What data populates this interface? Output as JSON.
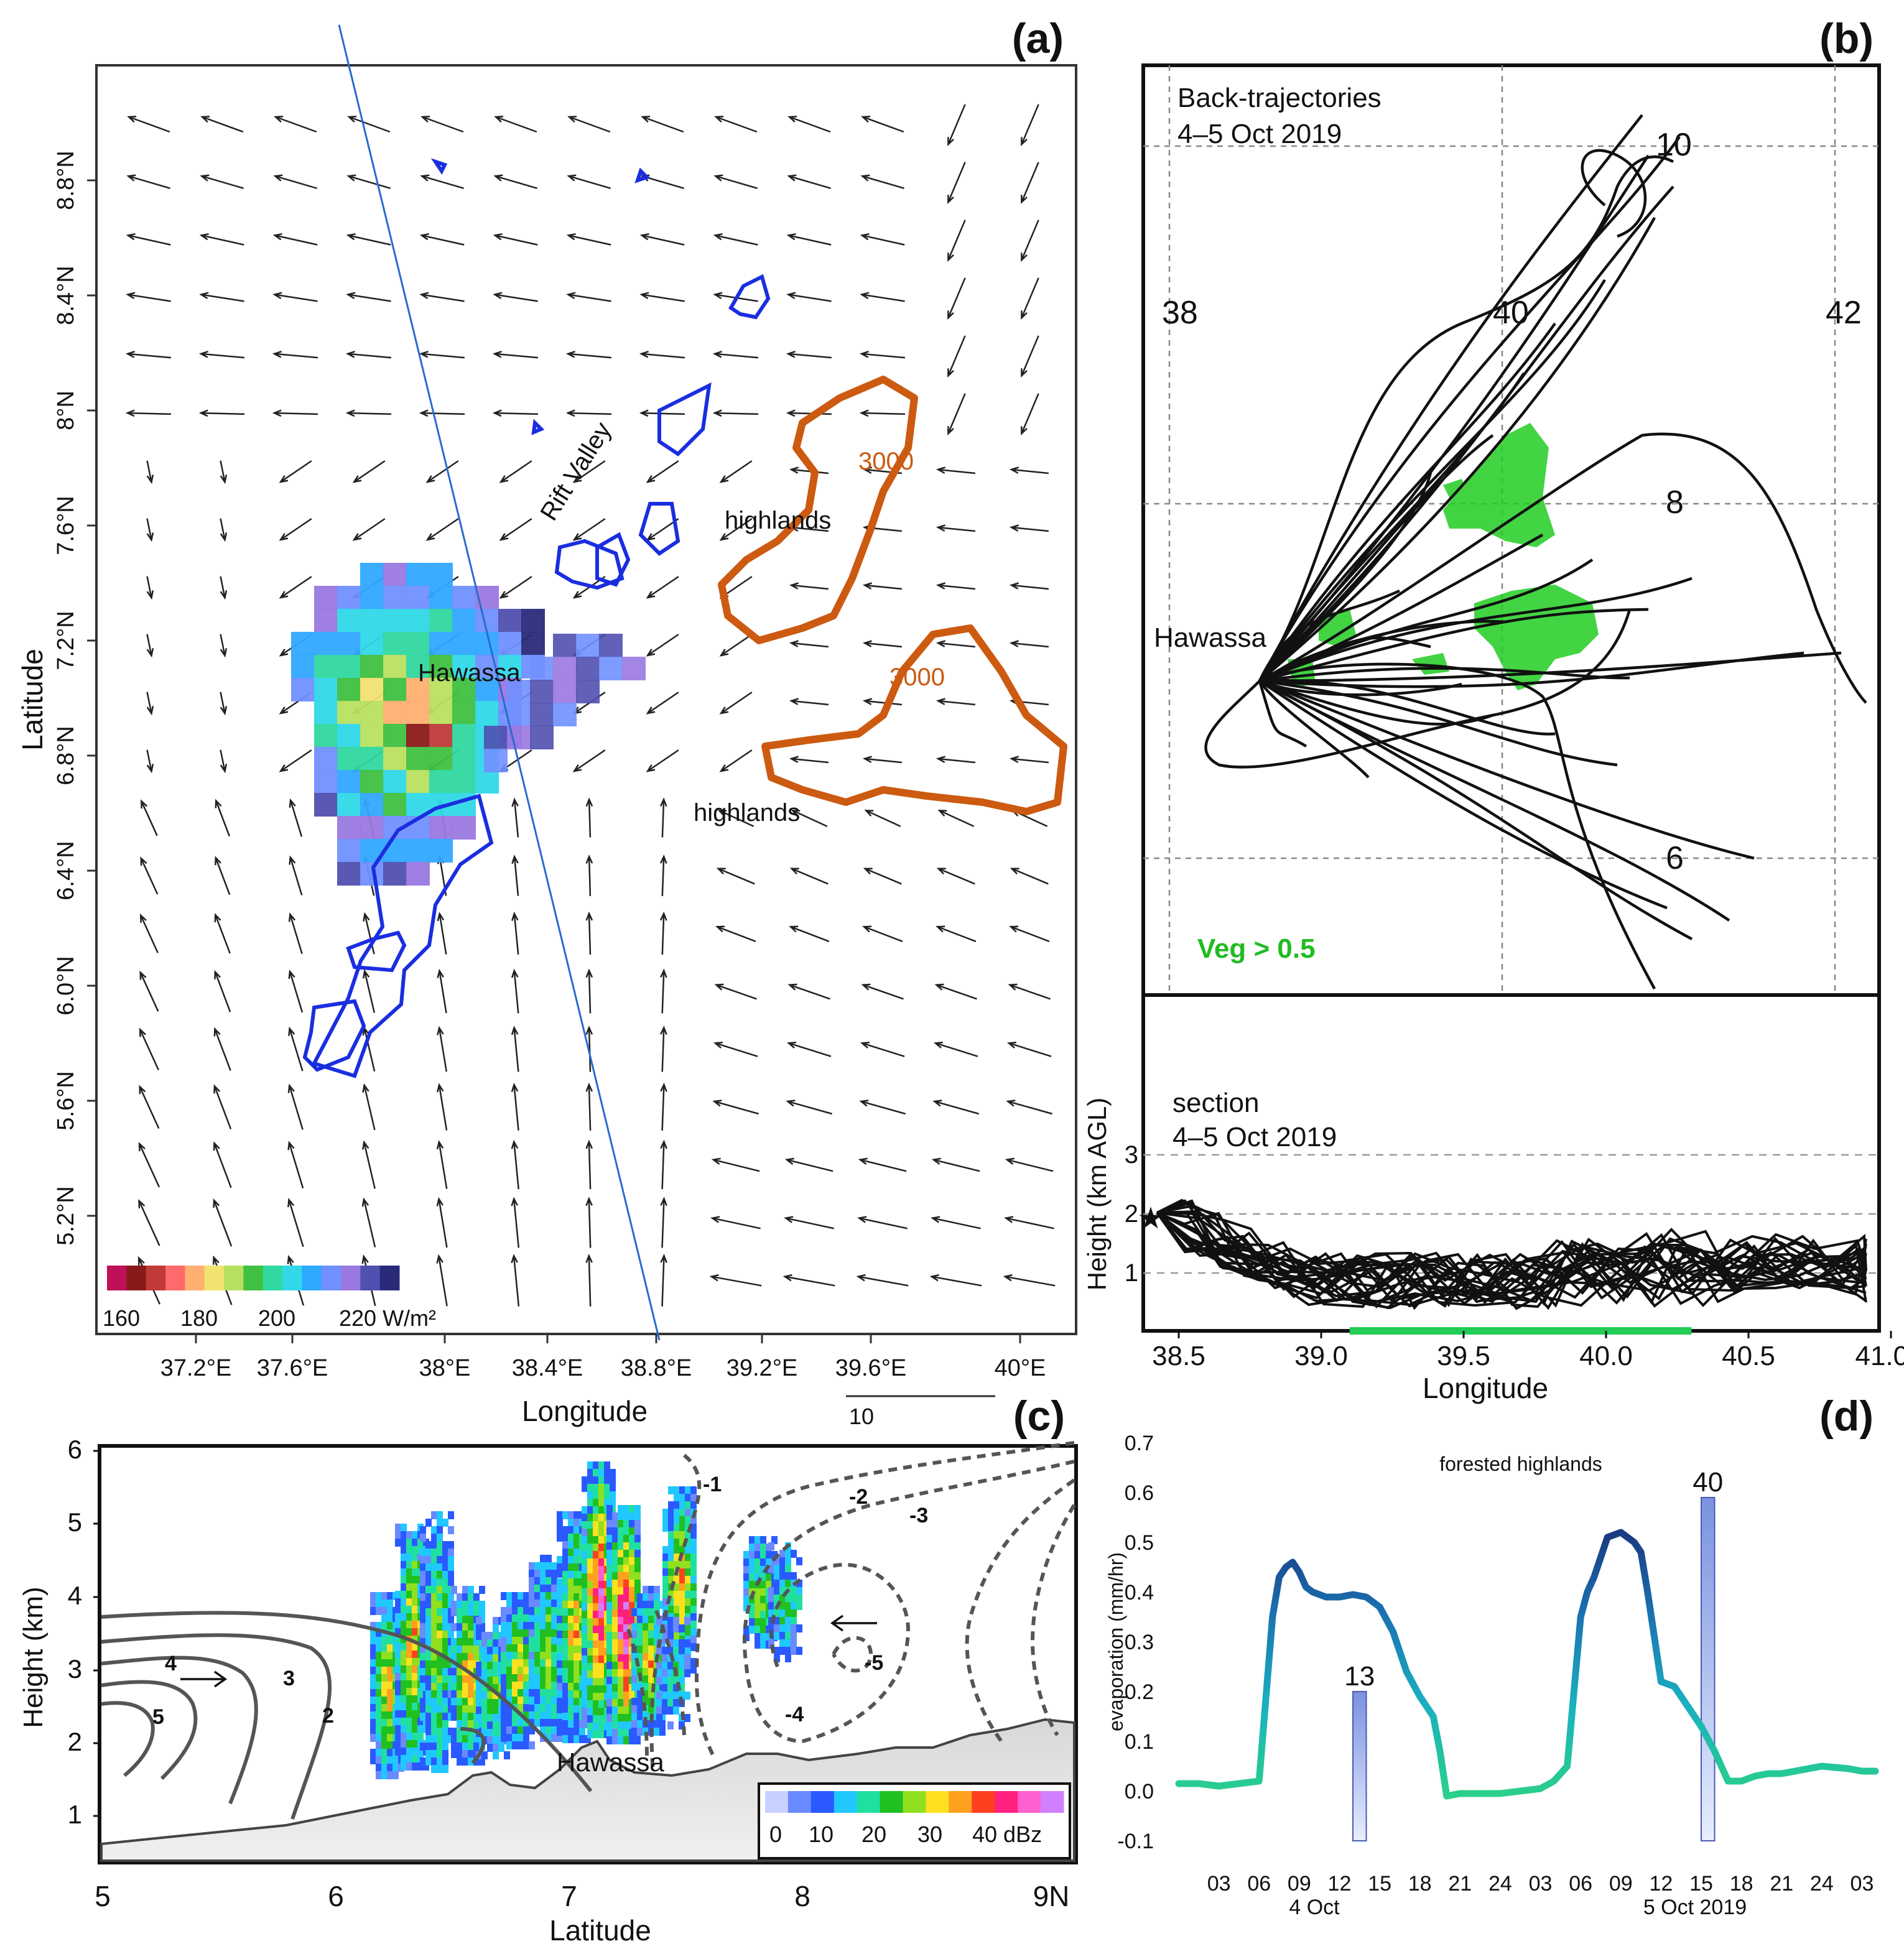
{
  "panels": {
    "a": {
      "label": "(a)",
      "xlabel": "Longitude",
      "ylabel": "Latitude",
      "xticks": [
        "37.2°E",
        "37.6°E",
        "38°E",
        "38.4°E",
        "38.8°E",
        "39.2°E",
        "39.6°E",
        "40°E"
      ],
      "yticks": [
        "8.8°N",
        "8.4°N",
        "8°N",
        "7.6°N",
        "7.2°N",
        "6.8°N",
        "6.4°N",
        "6.0°N",
        "5.6°N",
        "5.2°N"
      ],
      "text": {
        "hawassa": "Hawassa",
        "rift_valley": "Rift Valley",
        "highlands_1": "highlands",
        "highlands_2": "highlands",
        "contour_1": "3000",
        "contour_2": "3000",
        "ref_vector": "10"
      },
      "colorbar": {
        "ticks": [
          "160",
          "180",
          "200",
          "220 W/m²"
        ],
        "colors": [
          "#c0105a",
          "#8a1a1a",
          "#c03a3a",
          "#ff6a6a",
          "#ffb070",
          "#f2e270",
          "#b8e060",
          "#40c040",
          "#30d8a0",
          "#30d8e8",
          "#30a8ff",
          "#7090ff",
          "#9a78e0",
          "#5050b0",
          "#2a2a7a"
        ]
      },
      "colors": {
        "contour": "#cc5a10",
        "clouds": "#1a2ee0",
        "transect": "#2a6ad0"
      }
    },
    "b": {
      "label": "(b)",
      "title_line1": "Back-trajectories",
      "title_line2": "4–5 Oct 2019",
      "lon_labels": [
        "38",
        "40",
        "42"
      ],
      "lat_labels": [
        "10",
        "8",
        "6"
      ],
      "hawassa": "Hawassa",
      "veg_label": "Veg > 0.5",
      "veg_color": "#22cc22",
      "section": {
        "title_line1": "section",
        "title_line2": "4–5 Oct 2019",
        "ylabel": "Height (km AGL)",
        "yticks": [
          "3",
          "2",
          "1"
        ],
        "xticks": [
          "38.5",
          "39.0",
          "39.5",
          "40.0",
          "40.5",
          "41.0E"
        ],
        "xlabel": "Longitude",
        "veg_bar": [
          39.1,
          40.3
        ]
      }
    },
    "c": {
      "label": "(c)",
      "ylabel": "Height (km)",
      "xlabel": "Latitude",
      "yticks": [
        "6",
        "5",
        "4",
        "3",
        "2",
        "1"
      ],
      "xticks": [
        "5",
        "6",
        "7",
        "8",
        "9N"
      ],
      "hawassa": "Hawassa",
      "contour_labels": [
        "5",
        "4",
        "3",
        "2",
        "-1",
        "-2",
        "-3",
        "-4",
        "-5"
      ],
      "colorbar": {
        "ticks": [
          "0",
          "10",
          "20",
          "30",
          "40 dBz"
        ],
        "colors": [
          "#c8d0ff",
          "#6a8aff",
          "#2a5aff",
          "#20c8ff",
          "#20e0a0",
          "#20c020",
          "#90e020",
          "#ffe020",
          "#ffa020",
          "#ff4020",
          "#ff2080",
          "#ff60d0",
          "#d080ff"
        ]
      }
    },
    "d": {
      "label": "(d)",
      "title": "forested highlands",
      "ylabel": "evaporation (mm/hr)",
      "yticks": [
        "0.7",
        "0.6",
        "0.5",
        "0.4",
        "0.3",
        "0.2",
        "0.1",
        "0.0",
        "-0.1"
      ],
      "xticks": [
        "03",
        "06",
        "09",
        "12",
        "15",
        "18",
        "21",
        "24",
        "03",
        "06",
        "09",
        "12",
        "15",
        "18",
        "21",
        "24",
        "03"
      ],
      "date_labels": [
        "4 Oct",
        "5 Oct 2019"
      ],
      "bar_labels": [
        "13",
        "40"
      ]
    }
  },
  "chart_data": {
    "type": "line",
    "title": "forested highlands",
    "xlabel": "",
    "ylabel": "evaporation (mm/hr)",
    "ylim": [
      -0.1,
      0.7
    ],
    "x": [
      0,
      1.5,
      3,
      4.5,
      6,
      7,
      7.5,
      8,
      8.5,
      9,
      9.5,
      10,
      11,
      12,
      13,
      14,
      15,
      16,
      17,
      18,
      19,
      19.5,
      20,
      21,
      22,
      24,
      27,
      28,
      29,
      30,
      30.5,
      31,
      31.5,
      32,
      33,
      34,
      34.5,
      35,
      36,
      37,
      38,
      39,
      40,
      41,
      42,
      43,
      44,
      45,
      46,
      48,
      50,
      51,
      52
    ],
    "series": [
      {
        "values": [
          0.015,
          0.015,
          0.01,
          0.015,
          0.02,
          0.35,
          0.43,
          0.45,
          0.46,
          0.44,
          0.41,
          0.4,
          0.39,
          0.39,
          0.395,
          0.39,
          0.37,
          0.32,
          0.24,
          0.19,
          0.15,
          0.08,
          -0.01,
          -0.005,
          -0.005,
          -0.005,
          0.005,
          0.02,
          0.05,
          0.35,
          0.4,
          0.43,
          0.47,
          0.51,
          0.52,
          0.5,
          0.48,
          0.4,
          0.22,
          0.21,
          0.17,
          0.13,
          0.08,
          0.02,
          0.02,
          0.03,
          0.035,
          0.035,
          0.04,
          0.05,
          0.045,
          0.04,
          0.04
        ]
      }
    ],
    "bars": [
      {
        "label": "13",
        "x_start": 13,
        "x_end": 14,
        "value": 0.2
      },
      {
        "label": "40",
        "x_start": 39,
        "x_end": 40,
        "value": 0.59
      }
    ],
    "x_tick_hours": [
      3,
      6,
      9,
      12,
      15,
      18,
      21,
      24,
      27,
      30,
      33,
      36,
      39,
      42,
      45,
      48,
      51
    ]
  }
}
